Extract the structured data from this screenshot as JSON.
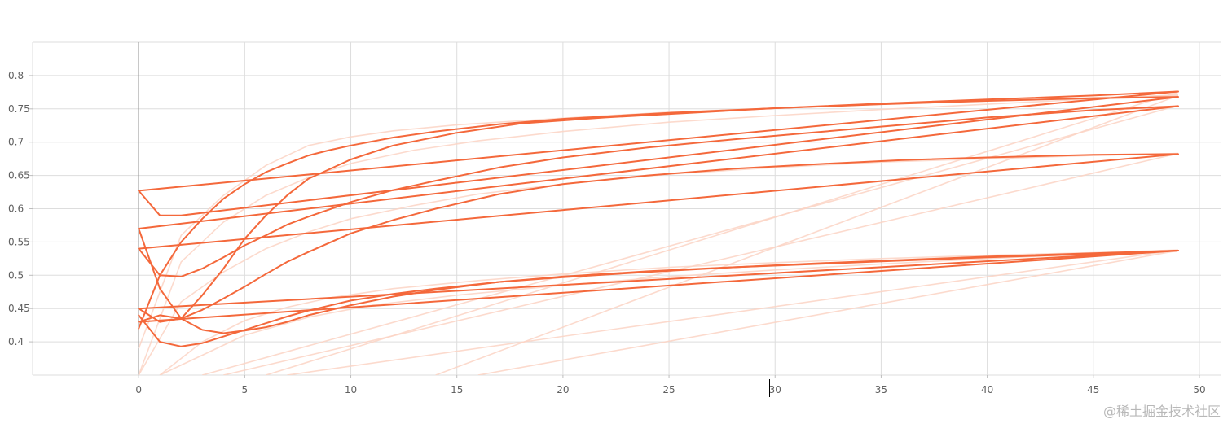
{
  "watermark": "@稀土掘金技术社区",
  "chart_data": {
    "type": "line",
    "title": "",
    "xlabel": "",
    "ylabel": "",
    "xlim": [
      -5,
      51
    ],
    "ylim": [
      0.35,
      0.85
    ],
    "xticks": [
      0,
      5,
      10,
      15,
      20,
      25,
      30,
      35,
      40,
      45,
      50
    ],
    "yticks": [
      0.4,
      0.45,
      0.5,
      0.55,
      0.6,
      0.65,
      0.7,
      0.75,
      0.8
    ],
    "ytick_labels": [
      "0.4",
      "0.45",
      "0.5",
      "0.55",
      "0.6",
      "0.65",
      "0.7",
      "0.75",
      "0.8"
    ],
    "grid": true,
    "colors": {
      "line": "#f4683b",
      "faint": "#fbd3c4",
      "grid": "#dddddd",
      "zero_axis": "#9e9e9e"
    },
    "series": [
      {
        "x": [
          0,
          1,
          2,
          3,
          4,
          5,
          6,
          7,
          8,
          9,
          10,
          12,
          14,
          17,
          20,
          25,
          30,
          35,
          40,
          45,
          49
        ],
        "values": [
          0.42,
          0.5,
          0.55,
          0.585,
          0.615,
          0.637,
          0.655,
          0.668,
          0.68,
          0.688,
          0.695,
          0.707,
          0.716,
          0.727,
          0.735,
          0.744,
          0.751,
          0.757,
          0.762,
          0.766,
          0.768
        ]
      },
      {
        "x": [
          0,
          1,
          2,
          3,
          4,
          5,
          6,
          7,
          8,
          10,
          12,
          15,
          18,
          22,
          26,
          30,
          35,
          40,
          45,
          49
        ],
        "values": [
          0.45,
          0.43,
          0.435,
          0.47,
          0.51,
          0.555,
          0.59,
          0.62,
          0.645,
          0.674,
          0.695,
          0.714,
          0.728,
          0.737,
          0.744,
          0.751,
          0.758,
          0.764,
          0.77,
          0.776
        ]
      },
      {
        "x": [
          0,
          1,
          2,
          3,
          4,
          5,
          6,
          7,
          8,
          10,
          12,
          14,
          17,
          20,
          24,
          28,
          32,
          36,
          40,
          45,
          49
        ],
        "values": [
          0.43,
          0.44,
          0.435,
          0.448,
          0.465,
          0.483,
          0.502,
          0.52,
          0.535,
          0.563,
          0.583,
          0.6,
          0.622,
          0.637,
          0.65,
          0.66,
          0.667,
          0.673,
          0.677,
          0.681,
          0.682
        ]
      },
      {
        "x": [
          0,
          1,
          2,
          3,
          4,
          5,
          6,
          7,
          8,
          10,
          12,
          14,
          17,
          20,
          24,
          28,
          32,
          36,
          40,
          45,
          49
        ],
        "values": [
          0.54,
          0.5,
          0.498,
          0.51,
          0.527,
          0.545,
          0.56,
          0.576,
          0.588,
          0.61,
          0.628,
          0.642,
          0.662,
          0.677,
          0.692,
          0.704,
          0.715,
          0.726,
          0.737,
          0.748,
          0.754
        ]
      },
      {
        "x": [
          0,
          1,
          2,
          3,
          4,
          5,
          6,
          7,
          8,
          10,
          12,
          14,
          17,
          20,
          24,
          28,
          32,
          36,
          40,
          45,
          49
        ],
        "values": [
          0.57,
          0.48,
          0.435,
          0.418,
          0.413,
          0.417,
          0.422,
          0.43,
          0.44,
          0.455,
          0.468,
          0.478,
          0.49,
          0.497,
          0.505,
          0.512,
          0.518,
          0.523,
          0.528,
          0.533,
          0.537
        ]
      },
      {
        "x": [
          0,
          1,
          2,
          3,
          4,
          5,
          6,
          7,
          8,
          10,
          12,
          14,
          17,
          20,
          24,
          28,
          32,
          36,
          40,
          45,
          49
        ],
        "values": [
          0.44,
          0.4,
          0.393,
          0.398,
          0.408,
          0.418,
          0.428,
          0.438,
          0.447,
          0.462,
          0.472,
          0.48,
          0.49,
          0.498,
          0.506,
          0.512,
          0.517,
          0.522,
          0.527,
          0.532,
          0.537
        ]
      },
      {
        "x": [
          0,
          1,
          2,
          49
        ],
        "values": [
          0.627,
          0.59,
          0.59,
          0.768
        ]
      },
      {
        "x": [
          0,
          49
        ],
        "values": [
          0.627,
          0.776
        ]
      },
      {
        "x": [
          0,
          49
        ],
        "values": [
          0.57,
          0.754
        ]
      },
      {
        "x": [
          0,
          49
        ],
        "values": [
          0.54,
          0.682
        ]
      },
      {
        "x": [
          0,
          49
        ],
        "values": [
          0.45,
          0.537
        ]
      },
      {
        "x": [
          0,
          49
        ],
        "values": [
          0.43,
          0.537
        ]
      }
    ],
    "faint_series": [
      {
        "x": [
          0,
          2,
          4,
          6,
          8,
          10,
          12,
          15,
          20,
          25,
          30,
          35,
          40,
          45,
          49
        ],
        "values": [
          0.39,
          0.56,
          0.62,
          0.665,
          0.695,
          0.708,
          0.717,
          0.726,
          0.736,
          0.745,
          0.751,
          0.757,
          0.762,
          0.767,
          0.77
        ]
      },
      {
        "x": [
          0,
          2,
          4,
          6,
          8,
          10,
          13,
          16,
          20,
          25,
          30,
          35,
          40,
          45,
          49
        ],
        "values": [
          0.35,
          0.52,
          0.58,
          0.62,
          0.647,
          0.668,
          0.688,
          0.702,
          0.716,
          0.73,
          0.74,
          0.749,
          0.757,
          0.765,
          0.771
        ]
      },
      {
        "x": [
          0,
          2,
          4,
          6,
          8,
          10,
          13,
          16,
          20,
          25,
          30,
          35,
          40,
          45,
          49
        ],
        "values": [
          0.35,
          0.46,
          0.505,
          0.54,
          0.565,
          0.585,
          0.605,
          0.622,
          0.637,
          0.652,
          0.662,
          0.67,
          0.675,
          0.68,
          0.683
        ]
      },
      {
        "x": [
          1,
          3,
          5,
          7,
          9,
          12,
          16,
          20,
          25,
          30,
          35,
          40,
          45,
          49
        ],
        "values": [
          0.35,
          0.4,
          0.432,
          0.452,
          0.466,
          0.48,
          0.492,
          0.502,
          0.512,
          0.519,
          0.525,
          0.53,
          0.534,
          0.538
        ]
      },
      {
        "x": [
          1,
          3,
          5,
          8,
          11,
          15,
          20,
          25,
          30,
          35,
          40,
          45,
          49
        ],
        "values": [
          0.35,
          0.38,
          0.41,
          0.437,
          0.455,
          0.47,
          0.485,
          0.498,
          0.508,
          0.517,
          0.525,
          0.532,
          0.537
        ]
      },
      {
        "x": [
          6,
          49
        ],
        "values": [
          0.35,
          0.775
        ]
      },
      {
        "x": [
          14,
          49
        ],
        "values": [
          0.35,
          0.77
        ]
      },
      {
        "x": [
          7,
          49
        ],
        "values": [
          0.35,
          0.538
        ]
      },
      {
        "x": [
          16,
          49
        ],
        "values": [
          0.35,
          0.537
        ]
      },
      {
        "x": [
          4,
          49
        ],
        "values": [
          0.35,
          0.683
        ]
      },
      {
        "x": [
          3,
          49
        ],
        "values": [
          0.35,
          0.755
        ]
      }
    ]
  }
}
